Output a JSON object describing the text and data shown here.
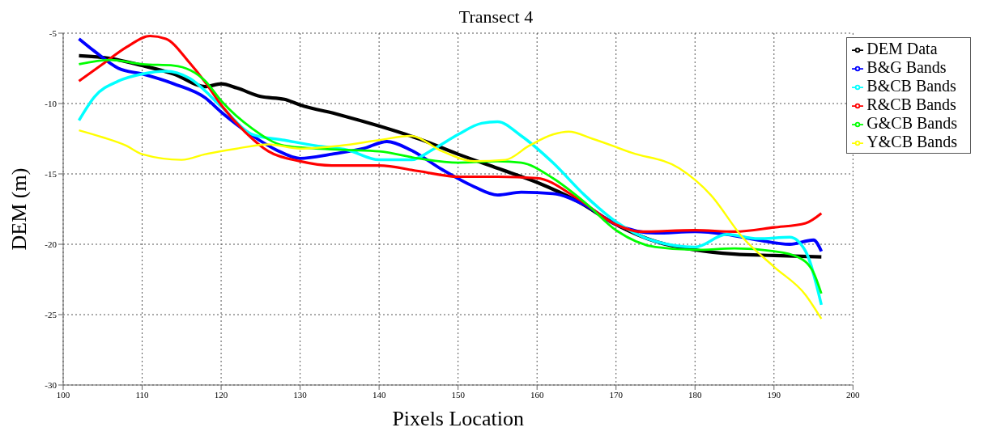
{
  "chart_data": {
    "type": "line",
    "title": "Transect 4",
    "xlabel": "Pixels Location",
    "ylabel": "DEM (m)",
    "xlim": [
      100,
      200
    ],
    "xticks": [
      100,
      110,
      120,
      130,
      140,
      150,
      160,
      170,
      180,
      190,
      200
    ],
    "ylim": [
      -30,
      -5
    ],
    "yticks": [
      -30,
      -25,
      -20,
      -15,
      -10,
      -5
    ],
    "grid": true,
    "legend": "top right",
    "marker": "none",
    "line_style": "solid",
    "series": [
      {
        "name": "DEM Data",
        "color": "#000000",
        "x": [
          102,
          106,
          110,
          114,
          118,
          120,
          122,
          125,
          128,
          130,
          135,
          140,
          145,
          150,
          155,
          160,
          165,
          170,
          175,
          180,
          185,
          190,
          196
        ],
        "values": [
          -6.6,
          -6.8,
          -7.3,
          -7.9,
          -8.8,
          -8.6,
          -8.9,
          -9.5,
          -9.7,
          -10.1,
          -10.8,
          -11.6,
          -12.5,
          -13.6,
          -14.6,
          -15.6,
          -16.9,
          -18.6,
          -19.8,
          -20.4,
          -20.7,
          -20.8,
          -20.9
        ]
      },
      {
        "name": "B&G Bands",
        "color": "#0000ff",
        "x": [
          102,
          104,
          107,
          110,
          114,
          118,
          120,
          124,
          127,
          130,
          134,
          138,
          141,
          144,
          148,
          152,
          155,
          158,
          162,
          166,
          170,
          175,
          180,
          184,
          188,
          192,
          195,
          196
        ],
        "values": [
          -5.4,
          -6.3,
          -7.5,
          -7.9,
          -8.6,
          -9.6,
          -10.6,
          -12.3,
          -13.3,
          -13.9,
          -13.6,
          -13.2,
          -12.7,
          -13.3,
          -14.7,
          -15.9,
          -16.5,
          -16.3,
          -16.4,
          -17.2,
          -18.6,
          -19.2,
          -19.1,
          -19.3,
          -19.7,
          -20,
          -19.7,
          -20.5
        ]
      },
      {
        "name": "B&CB Bands",
        "color": "#00ffff",
        "x": [
          102,
          104,
          107,
          110,
          113,
          116,
          120,
          124,
          128,
          132,
          136,
          140,
          144,
          147,
          150,
          153,
          155,
          158,
          162,
          166,
          170,
          175,
          180,
          184,
          188,
          192,
          194,
          196
        ],
        "values": [
          -11.2,
          -9.5,
          -8.4,
          -7.9,
          -7.7,
          -8.2,
          -10.2,
          -12.2,
          -12.6,
          -13,
          -13.3,
          -14,
          -14,
          -13.2,
          -12.2,
          -11.4,
          -11.3,
          -12.3,
          -14.2,
          -16.5,
          -18.4,
          -19.8,
          -20.2,
          -19.3,
          -19.6,
          -19.5,
          -20.5,
          -24.3
        ]
      },
      {
        "name": "R&CB Bands",
        "color": "#ff0000",
        "x": [
          102,
          105,
          108,
          111,
          113,
          116,
          118,
          120,
          123,
          126,
          130,
          134,
          140,
          145,
          150,
          155,
          160,
          165,
          170,
          173,
          180,
          185,
          190,
          194,
          196
        ],
        "values": [
          -8.4,
          -7.2,
          -6,
          -5.2,
          -5.4,
          -7.1,
          -8.5,
          -10.1,
          -12,
          -13.4,
          -14.1,
          -14.4,
          -14.4,
          -14.8,
          -15.2,
          -15.2,
          -15.3,
          -16.7,
          -18.6,
          -19.1,
          -19,
          -19.1,
          -18.8,
          -18.5,
          -17.8
        ]
      },
      {
        "name": "G&CB Bands",
        "color": "#00ff00",
        "x": [
          102,
          106,
          110,
          114,
          118,
          120,
          124,
          128,
          132,
          136,
          140,
          145,
          150,
          155,
          158,
          162,
          166,
          170,
          175,
          180,
          185,
          190,
          193,
          195,
          196
        ],
        "values": [
          -7.2,
          -6.9,
          -7.2,
          -7.3,
          -8.4,
          -9.8,
          -11.8,
          -13,
          -13.2,
          -13.3,
          -13.4,
          -13.9,
          -14.2,
          -14.1,
          -14.2,
          -15.3,
          -17,
          -19,
          -20.2,
          -20.4,
          -20.3,
          -20.5,
          -20.9,
          -22,
          -23.5
        ]
      },
      {
        "name": "Y&CB Bands",
        "color": "#ffff00",
        "x": [
          102,
          105,
          108,
          110,
          115,
          118,
          122,
          126,
          130,
          135,
          140,
          144,
          148,
          152,
          156,
          159,
          162,
          164,
          167,
          172,
          178,
          182,
          186,
          190,
          194,
          196
        ],
        "values": [
          -11.9,
          -12.4,
          -13,
          -13.6,
          -14,
          -13.6,
          -13.2,
          -12.9,
          -13.2,
          -13,
          -12.6,
          -12.3,
          -13.4,
          -14.1,
          -14,
          -13,
          -12.2,
          -12,
          -12.5,
          -13.5,
          -14.6,
          -16.5,
          -19.5,
          -21.6,
          -23.6,
          -25.3
        ]
      }
    ]
  }
}
